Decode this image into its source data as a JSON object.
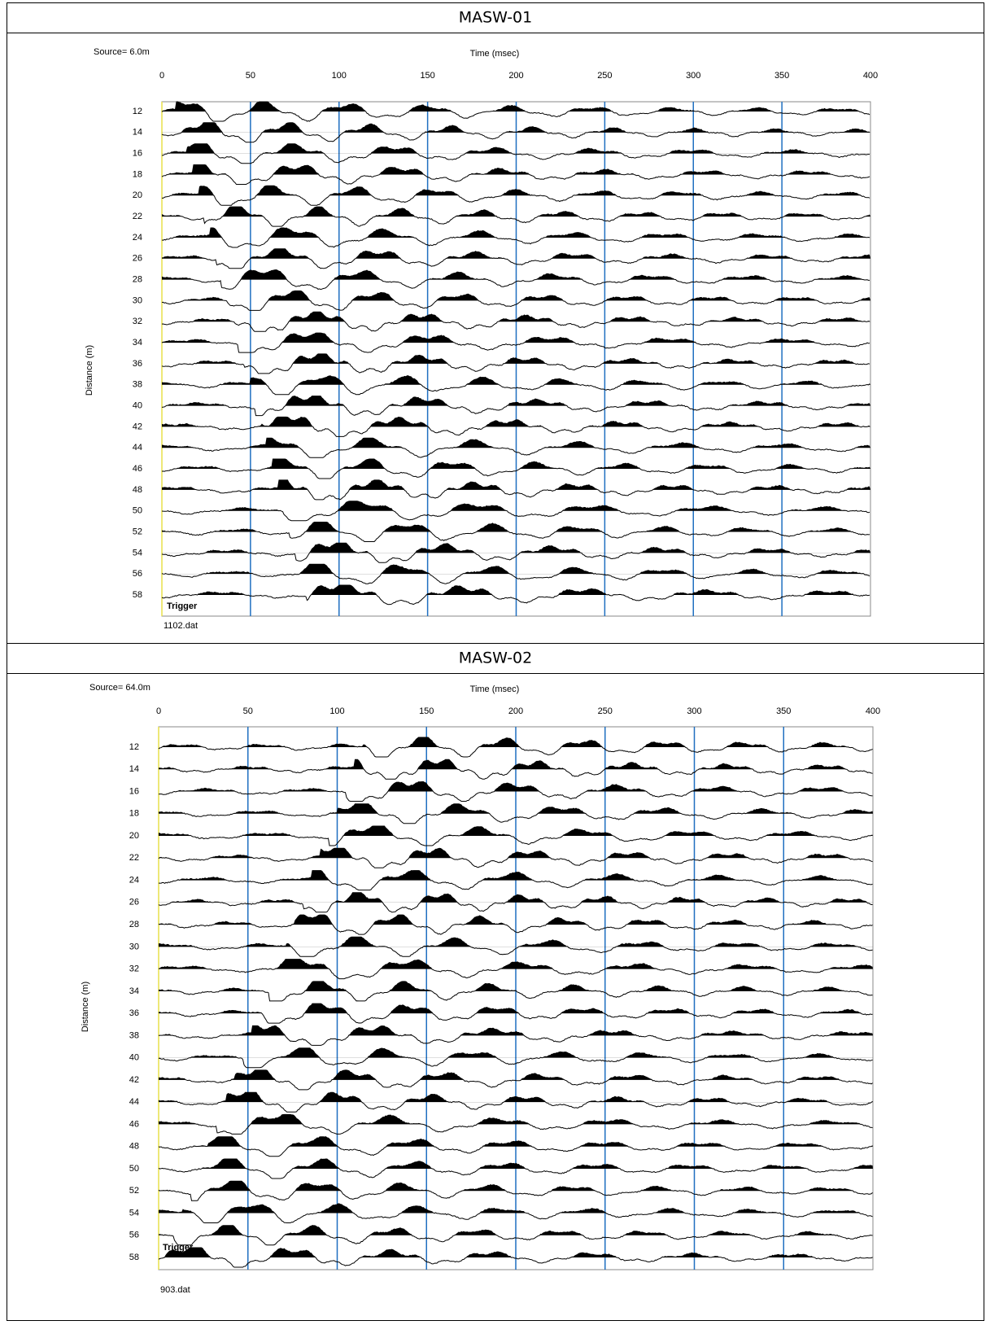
{
  "panels": [
    {
      "title": "MASW-01",
      "source": "Source= 6.0m",
      "time_label": "Time (msec)",
      "distance_label": "Distance (m)",
      "trigger": "Trigger",
      "file": "1102.dat",
      "xlim": [
        0,
        400
      ],
      "xticks": [
        0,
        50,
        100,
        150,
        200,
        250,
        300,
        350,
        400
      ],
      "ylim": [
        12,
        58
      ],
      "distances": [
        12,
        14,
        16,
        18,
        20,
        22,
        24,
        26,
        28,
        30,
        32,
        34,
        36,
        38,
        40,
        42,
        44,
        46,
        48,
        50,
        52,
        54,
        56,
        58
      ]
    },
    {
      "title": "MASW-02",
      "source": "Source= 64.0m",
      "time_label": "Time (msec)",
      "distance_label": "Distance (m)",
      "trigger": "Trigger",
      "file": "903.dat",
      "xlim": [
        0,
        400
      ],
      "xticks": [
        0,
        50,
        100,
        150,
        200,
        250,
        300,
        350,
        400
      ],
      "ylim": [
        12,
        58
      ],
      "distances": [
        12,
        14,
        16,
        18,
        20,
        22,
        24,
        26,
        28,
        30,
        32,
        34,
        36,
        38,
        40,
        42,
        44,
        46,
        48,
        50,
        52,
        54,
        56,
        58
      ]
    }
  ]
}
